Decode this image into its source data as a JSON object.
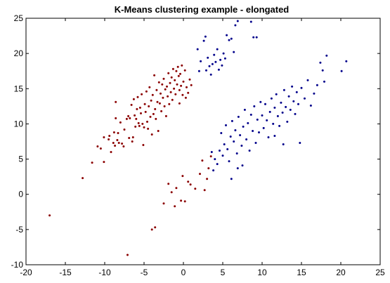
{
  "chart_data": {
    "type": "scatter",
    "title": "K-Means clustering example - elongated",
    "xlabel": "",
    "ylabel": "",
    "xlim": [
      -20,
      25
    ],
    "ylim": [
      -10,
      25
    ],
    "xticks": [
      -20,
      -15,
      -10,
      -5,
      0,
      5,
      10,
      15,
      20,
      25
    ],
    "yticks": [
      -10,
      -5,
      0,
      5,
      10,
      15,
      20,
      25
    ],
    "grid": false,
    "series": [
      {
        "color": "#8b0000",
        "points": [
          [
            -17,
            -3
          ],
          [
            -12.8,
            2.3
          ],
          [
            -11.6,
            4.5
          ],
          [
            -10.9,
            6.8
          ],
          [
            -10.5,
            6.5
          ],
          [
            -10.1,
            4.6
          ],
          [
            -10.1,
            8.1
          ],
          [
            -9.5,
            7.8
          ],
          [
            -9.4,
            8.3
          ],
          [
            -9.2,
            6.0
          ],
          [
            -8.9,
            7.3
          ],
          [
            -8.8,
            8.8
          ],
          [
            -8.7,
            6.9
          ],
          [
            -8.6,
            13.1
          ],
          [
            -8.6,
            10.8
          ],
          [
            -8.4,
            7.7
          ],
          [
            -8.3,
            8.7
          ],
          [
            -8.2,
            7.3
          ],
          [
            -8.0,
            10.2
          ],
          [
            -7.8,
            7.2
          ],
          [
            -7.6,
            6.8
          ],
          [
            -7.5,
            9.2
          ],
          [
            -7.2,
            10.7
          ],
          [
            -7.0,
            11.1
          ],
          [
            -6.9,
            8.0
          ],
          [
            -6.8,
            10.8
          ],
          [
            -6.6,
            12.7
          ],
          [
            -6.5,
            7.5
          ],
          [
            -6.4,
            8.1
          ],
          [
            -6.3,
            13.5
          ],
          [
            -6.2,
            11.2
          ],
          [
            -6.1,
            9.6
          ],
          [
            -6.0,
            10.7
          ],
          [
            -5.9,
            12.1
          ],
          [
            -5.8,
            13.8
          ],
          [
            -5.7,
            10.1
          ],
          [
            -5.6,
            9.7
          ],
          [
            -5.5,
            12.3
          ],
          [
            -5.4,
            11.5
          ],
          [
            -5.3,
            14.2
          ],
          [
            -5.2,
            10.0
          ],
          [
            -5.1,
            7.0
          ],
          [
            -5.0,
            9.5
          ],
          [
            -4.9,
            12.8
          ],
          [
            -4.8,
            11.7
          ],
          [
            -4.7,
            14.6
          ],
          [
            -4.6,
            10.3
          ],
          [
            -4.5,
            9.3
          ],
          [
            -4.4,
            12.5
          ],
          [
            -4.3,
            15.2
          ],
          [
            -4.2,
            11.0
          ],
          [
            -4.1,
            13.3
          ],
          [
            -4.0,
            8.5
          ],
          [
            -3.9,
            14.1
          ],
          [
            -3.8,
            11.4
          ],
          [
            -3.7,
            16.9
          ],
          [
            -3.6,
            12.1
          ],
          [
            -3.5,
            10.7
          ],
          [
            -3.4,
            14.8
          ],
          [
            -3.3,
            13.1
          ],
          [
            -3.2,
            9.0
          ],
          [
            -3.1,
            15.9
          ],
          [
            -3.0,
            12.9
          ],
          [
            -2.9,
            14.3
          ],
          [
            -2.8,
            11.8
          ],
          [
            -2.7,
            15.6
          ],
          [
            -2.6,
            13.7
          ],
          [
            -2.5,
            16.4
          ],
          [
            -2.4,
            12.5
          ],
          [
            -2.3,
            14.9
          ],
          [
            -2.2,
            11.1
          ],
          [
            -2.1,
            15.3
          ],
          [
            -2.0,
            13.9
          ],
          [
            -1.9,
            17.2
          ],
          [
            -1.8,
            12.8
          ],
          [
            -1.7,
            15.8
          ],
          [
            -1.6,
            14.5
          ],
          [
            -1.5,
            16.6
          ],
          [
            -1.4,
            13.4
          ],
          [
            -1.3,
            17.8
          ],
          [
            -1.2,
            15.0
          ],
          [
            -1.1,
            16.2
          ],
          [
            -1.0,
            14.2
          ],
          [
            -0.9,
            17.5
          ],
          [
            -0.8,
            15.6
          ],
          [
            -0.7,
            18.1
          ],
          [
            -0.6,
            16.8
          ],
          [
            -0.5,
            14.8
          ],
          [
            -0.4,
            17.1
          ],
          [
            -0.3,
            15.4
          ],
          [
            -0.2,
            18.3
          ],
          [
            0.0,
            16.0
          ],
          [
            0.2,
            17.6
          ],
          [
            0.4,
            15.2
          ],
          [
            0.6,
            14.4
          ],
          [
            0.8,
            16.3
          ],
          [
            1.0,
            15.5
          ],
          [
            0.3,
            13.7
          ],
          [
            -0.1,
            14.1
          ],
          [
            -0.5,
            12.9
          ],
          [
            -4.0,
            -5.0
          ],
          [
            -3.6,
            -4.7
          ],
          [
            -7.1,
            -8.6
          ],
          [
            -2.5,
            -1.3
          ],
          [
            -1.9,
            1.5
          ],
          [
            -1.1,
            -1.7
          ],
          [
            -0.9,
            0.9
          ],
          [
            -0.3,
            -0.9
          ],
          [
            -0.1,
            2.6
          ],
          [
            0.2,
            -1.0
          ],
          [
            0.6,
            1.8
          ],
          [
            0.9,
            1.4
          ],
          [
            1.5,
            0.8
          ],
          [
            2.1,
            2.9
          ],
          [
            2.4,
            4.8
          ],
          [
            2.7,
            0.6
          ],
          [
            3.0,
            2.2
          ],
          [
            3.2,
            3.7
          ],
          [
            3.5,
            5.4
          ],
          [
            -1.5,
            0.3
          ]
        ]
      },
      {
        "color": "#00008b",
        "points": [
          [
            2.6,
            21.8
          ],
          [
            2.8,
            22.4
          ],
          [
            2.9,
            17.6
          ],
          [
            3.1,
            19.4
          ],
          [
            3.3,
            18.2
          ],
          [
            3.5,
            17.0
          ],
          [
            3.7,
            18.5
          ],
          [
            3.9,
            19.8
          ],
          [
            4.1,
            18.8
          ],
          [
            4.3,
            20.6
          ],
          [
            4.5,
            17.7
          ],
          [
            4.7,
            19.1
          ],
          [
            4.9,
            18.3
          ],
          [
            5.1,
            20.0
          ],
          [
            5.3,
            19.3
          ],
          [
            5.5,
            22.6
          ],
          [
            5.8,
            21.9
          ],
          [
            6.1,
            22.1
          ],
          [
            6.4,
            20.2
          ],
          [
            6.6,
            24.0
          ],
          [
            6.9,
            24.6
          ],
          [
            8.6,
            24.5
          ],
          [
            8.9,
            22.3
          ],
          [
            9.3,
            22.3
          ],
          [
            1.8,
            20.6
          ],
          [
            2.2,
            18.9
          ],
          [
            2.0,
            17.5
          ],
          [
            4.3,
            4.3
          ],
          [
            4.6,
            6.2
          ],
          [
            4.8,
            8.7
          ],
          [
            5.0,
            5.5
          ],
          [
            5.2,
            7.1
          ],
          [
            5.4,
            9.8
          ],
          [
            5.6,
            6.4
          ],
          [
            5.8,
            4.7
          ],
          [
            6.0,
            8.2
          ],
          [
            6.2,
            10.4
          ],
          [
            6.4,
            7.5
          ],
          [
            6.6,
            9.1
          ],
          [
            6.8,
            5.8
          ],
          [
            7.0,
            11.0
          ],
          [
            7.2,
            8.4
          ],
          [
            7.4,
            6.9
          ],
          [
            7.6,
            9.6
          ],
          [
            7.8,
            12.0
          ],
          [
            8.0,
            7.8
          ],
          [
            8.2,
            10.1
          ],
          [
            8.4,
            6.2
          ],
          [
            8.6,
            11.3
          ],
          [
            8.8,
            9.0
          ],
          [
            9.0,
            12.5
          ],
          [
            9.2,
            7.3
          ],
          [
            9.4,
            10.6
          ],
          [
            9.6,
            8.8
          ],
          [
            9.8,
            13.1
          ],
          [
            10.0,
            11.2
          ],
          [
            10.2,
            9.4
          ],
          [
            10.4,
            12.8
          ],
          [
            10.6,
            10.5
          ],
          [
            10.8,
            8.1
          ],
          [
            11.0,
            11.7
          ],
          [
            11.2,
            13.6
          ],
          [
            11.4,
            10.0
          ],
          [
            11.6,
            12.3
          ],
          [
            11.8,
            14.2
          ],
          [
            12.0,
            11.1
          ],
          [
            12.2,
            9.7
          ],
          [
            12.4,
            13.0
          ],
          [
            12.6,
            11.6
          ],
          [
            12.8,
            14.8
          ],
          [
            13.0,
            12.4
          ],
          [
            13.2,
            10.3
          ],
          [
            13.4,
            13.9
          ],
          [
            13.6,
            12.0
          ],
          [
            13.8,
            15.3
          ],
          [
            14.0,
            13.2
          ],
          [
            14.2,
            11.4
          ],
          [
            14.4,
            14.5
          ],
          [
            14.6,
            12.8
          ],
          [
            15.0,
            15.1
          ],
          [
            15.4,
            13.6
          ],
          [
            15.8,
            16.2
          ],
          [
            16.2,
            12.6
          ],
          [
            16.6,
            14.3
          ],
          [
            17.0,
            15.5
          ],
          [
            17.4,
            18.7
          ],
          [
            17.7,
            17.6
          ],
          [
            17.9,
            16.0
          ],
          [
            18.2,
            19.7
          ],
          [
            20.1,
            17.5
          ],
          [
            20.7,
            18.9
          ],
          [
            14.8,
            7.3
          ],
          [
            12.7,
            7.1
          ],
          [
            11.6,
            8.3
          ],
          [
            6.1,
            2.2
          ],
          [
            6.9,
            3.7
          ],
          [
            7.5,
            4.1
          ],
          [
            3.8,
            3.4
          ],
          [
            4.0,
            5.0
          ],
          [
            3.6,
            6.0
          ]
        ]
      }
    ]
  }
}
